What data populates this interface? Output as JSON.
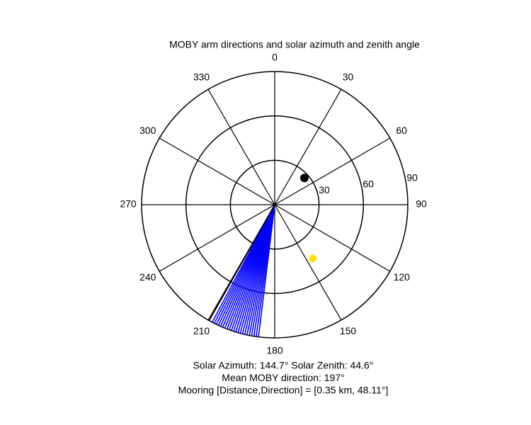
{
  "chart_data": {
    "type": "polar",
    "title": "MOBY arm directions and solar azimuth and zenith angle",
    "rlim": [
      0,
      90
    ],
    "rticks": [
      30,
      60,
      90
    ],
    "thetaticks": [
      0,
      30,
      60,
      90,
      120,
      150,
      180,
      210,
      240,
      270,
      300,
      330
    ],
    "series": [
      {
        "color": "#0000ff",
        "theta": [
          187,
          188,
          189,
          190,
          191,
          192,
          193,
          194,
          195,
          196,
          197,
          198,
          199,
          200,
          201,
          202,
          203,
          204,
          205,
          206,
          207,
          208
        ]
      },
      {
        "color": "#000000",
        "theta": [
          209.5
        ]
      }
    ],
    "points": [
      {
        "theta": 48,
        "r": 27,
        "color": "#000000",
        "marker": "dot"
      },
      {
        "theta": 144.7,
        "r": 44.6,
        "color": "#ffe000",
        "marker": "star"
      }
    ],
    "annotations": [
      "Solar Azimuth: 144.7°   Solar Zenith: 44.6°",
      "Mean MOBY direction: 197°",
      "Mooring [Distance,Direction] = [0.35 km, 48.11°]"
    ]
  }
}
